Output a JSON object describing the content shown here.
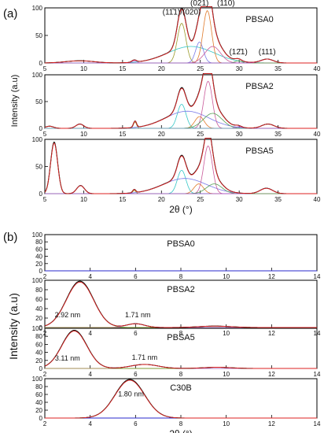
{
  "figure": {
    "panel_a_label": "(a)",
    "panel_b_label": "(b)"
  },
  "chart_data": [
    {
      "type": "line",
      "panel": "(a)",
      "ylabel": "Intensity (a.u)",
      "xlabel": "2θ (°)",
      "xlim": [
        5,
        40
      ],
      "ylim": [
        0,
        100
      ],
      "xticks": [
        5,
        10,
        15,
        20,
        25,
        30,
        35,
        40
      ],
      "yticks": [
        0,
        50,
        100
      ],
      "subplots": [
        {
          "name": "PBSA0",
          "peaks": [
            {
              "center": 9.5,
              "height": 4,
              "width": 1.8
            },
            {
              "center": 16.5,
              "height": 4,
              "width": 0.3
            },
            {
              "center": 22.6,
              "height": 72,
              "width": 0.55
            },
            {
              "center": 23.8,
              "height": 30,
              "width": 3.0
            },
            {
              "center": 24.9,
              "height": 38,
              "width": 0.5
            },
            {
              "center": 25.9,
              "height": 95,
              "width": 0.55
            },
            {
              "center": 26.6,
              "height": 30,
              "width": 1.0
            },
            {
              "center": 29.9,
              "height": 4,
              "width": 0.4
            },
            {
              "center": 33.6,
              "height": 7,
              "width": 0.8
            }
          ],
          "annotations": [
            {
              "label": "(11̄1)/(020)",
              "x": 22.6,
              "y": 88
            },
            {
              "label": "(021)",
              "x": 24.9,
              "y": 104
            },
            {
              "label": "(110)",
              "x": 28.3,
              "y": 104
            },
            {
              "label": "(12̄1)",
              "x": 29.9,
              "y": 16
            },
            {
              "label": "(111)",
              "x": 33.6,
              "y": 16
            }
          ]
        },
        {
          "name": "PBSA2",
          "peaks": [
            {
              "center": 5.6,
              "height": 4,
              "width": 0.5
            },
            {
              "center": 9.5,
              "height": 8,
              "width": 0.5
            },
            {
              "center": 16.6,
              "height": 12,
              "width": 0.2
            },
            {
              "center": 22.6,
              "height": 45,
              "width": 0.55
            },
            {
              "center": 23.3,
              "height": 32,
              "width": 2.8
            },
            {
              "center": 24.9,
              "height": 22,
              "width": 0.6
            },
            {
              "center": 26.0,
              "height": 88,
              "width": 0.55
            },
            {
              "center": 26.6,
              "height": 28,
              "width": 1.2
            },
            {
              "center": 29.9,
              "height": 3,
              "width": 0.4
            },
            {
              "center": 33.7,
              "height": 8,
              "width": 0.8
            }
          ]
        },
        {
          "name": "PBSA5",
          "peaks": [
            {
              "center": 6.2,
              "height": 95,
              "width": 0.45
            },
            {
              "center": 9.6,
              "height": 15,
              "width": 0.5
            },
            {
              "center": 16.5,
              "height": 6,
              "width": 0.2
            },
            {
              "center": 22.6,
              "height": 43,
              "width": 0.55
            },
            {
              "center": 23.0,
              "height": 28,
              "width": 2.8
            },
            {
              "center": 24.8,
              "height": 18,
              "width": 0.6
            },
            {
              "center": 26.0,
              "height": 88,
              "width": 0.55
            },
            {
              "center": 26.8,
              "height": 18,
              "width": 1.0
            },
            {
              "center": 33.5,
              "height": 10,
              "width": 0.8
            }
          ]
        }
      ]
    },
    {
      "type": "line",
      "panel": "(b)",
      "ylabel": "Intensity (a.u)",
      "xlabel": "2θ (°)",
      "xlim": [
        2,
        14
      ],
      "ylim": [
        0,
        100
      ],
      "xticks": [
        2,
        4,
        6,
        8,
        10,
        12,
        14
      ],
      "yticks": [
        0,
        20,
        40,
        60,
        80,
        100
      ],
      "subplots": [
        {
          "name": "PBSA0",
          "peaks": [],
          "annotations": []
        },
        {
          "name": "PBSA2",
          "peaks": [
            {
              "center": 3.55,
              "height": 98,
              "width": 0.6
            },
            {
              "center": 6.0,
              "height": 8,
              "width": 0.4
            },
            {
              "center": 9.5,
              "height": 3,
              "width": 0.7
            }
          ],
          "annotations": [
            {
              "label": "2.92 nm",
              "x": 3.0,
              "y": 22
            },
            {
              "label": "1.71 nm",
              "x": 6.1,
              "y": 22
            }
          ]
        },
        {
          "name": "PBSA5",
          "peaks": [
            {
              "center": 3.3,
              "height": 95,
              "width": 0.55
            },
            {
              "center": 6.4,
              "height": 10,
              "width": 0.6
            },
            {
              "center": 9.6,
              "height": 3,
              "width": 0.6
            }
          ],
          "annotations": [
            {
              "label": "3.11 nm",
              "x": 3.0,
              "y": 20
            },
            {
              "label": "1.71 nm",
              "x": 6.4,
              "y": 22
            }
          ]
        },
        {
          "name": "C30B",
          "peaks": [
            {
              "center": 5.75,
              "height": 98,
              "width": 0.65
            }
          ],
          "annotations": [
            {
              "label": "1.80 nm",
              "x": 5.8,
              "y": 55
            }
          ]
        }
      ]
    }
  ]
}
